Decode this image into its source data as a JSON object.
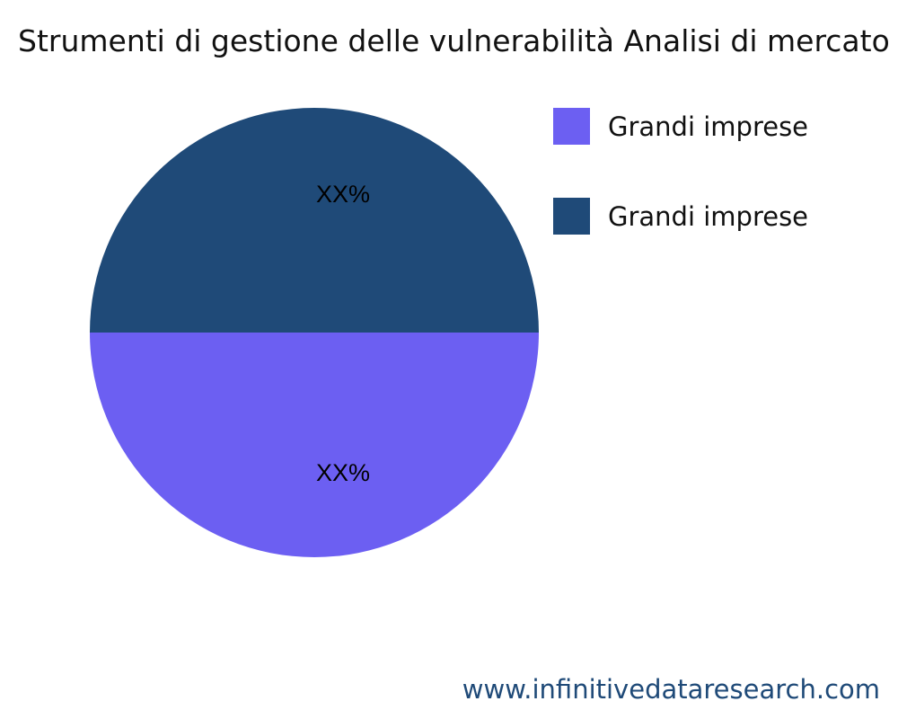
{
  "chart_data": {
    "type": "pie",
    "title": "Strumenti di gestione delle vulnerabilità Analisi di mercato",
    "slices": [
      {
        "name": "Grandi imprese",
        "value": 50,
        "label": "XX%",
        "color": "#6c5ff2"
      },
      {
        "name": "Grandi imprese",
        "value": 50,
        "label": "XX%",
        "color": "#1f4a78"
      }
    ],
    "legend_placement": "top-right"
  },
  "footer": "www.infinitivedataresearch.com"
}
